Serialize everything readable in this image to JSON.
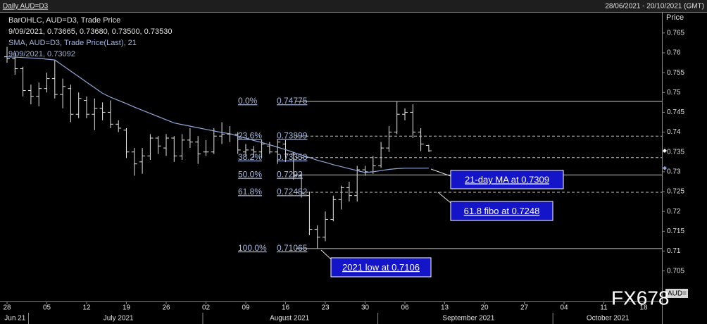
{
  "chart_data": {
    "type": "ohlc",
    "title": "Daily AUD=D3",
    "date_range": "28/06/2021 - 20/10/2021 (GMT)",
    "y_label": "Price",
    "instrument_tag": "AUD=",
    "watermark": "FX678",
    "categories": [
      "28",
      null,
      null,
      null,
      null,
      "05",
      null,
      null,
      null,
      null,
      "12",
      null,
      null,
      null,
      null,
      "19",
      null,
      null,
      null,
      null,
      "26",
      null,
      null,
      null,
      null,
      "02",
      null,
      null,
      null,
      null,
      "09",
      null,
      null,
      null,
      null,
      "16",
      null,
      null,
      null,
      null,
      "23",
      null,
      null,
      null,
      null,
      "30",
      null,
      null,
      null,
      null,
      "06",
      null,
      null,
      null,
      null,
      "13",
      null,
      null,
      null,
      null,
      "20",
      null,
      null,
      null,
      null,
      "27",
      null,
      null,
      null,
      null,
      "04",
      null,
      null,
      null,
      null,
      "11",
      null,
      null,
      null,
      null,
      "18",
      null,
      null
    ],
    "month_labels": [
      "Jun 21",
      "July 2021",
      "August 2021",
      "September 2021",
      "October 2021"
    ],
    "series": [
      {
        "name": "BarOHLC, AUD=D3, Trade Price",
        "legend_value": "9/09/2021, 0.73665, 0.73680, 0.73500, 0.73530",
        "color": "#e6e6e6",
        "open": [
          0.759,
          0.7585,
          0.756,
          0.7505,
          0.749,
          0.751,
          0.7535,
          0.7495,
          0.751,
          0.7445,
          0.748,
          0.7445,
          0.746,
          0.745,
          0.742,
          0.7405,
          0.735,
          0.7325,
          0.734,
          0.7385,
          0.736,
          0.7385,
          0.734,
          0.738,
          0.7375,
          0.735,
          0.735,
          0.739,
          0.7395,
          0.7395,
          0.735,
          0.7355,
          0.735,
          0.7365,
          0.735,
          0.737,
          0.7345,
          0.729,
          0.724,
          0.7155,
          0.7135,
          0.718,
          0.723,
          0.726,
          0.724,
          0.7305,
          0.73,
          0.7315,
          0.736,
          0.74,
          0.7445,
          0.745,
          0.74,
          0.73665,
          null,
          null,
          null,
          null,
          null,
          null,
          null,
          null,
          null,
          null,
          null,
          null,
          null,
          null,
          null,
          null,
          null,
          null,
          null,
          null,
          null,
          null,
          null,
          null,
          null,
          null,
          null,
          null,
          null
        ],
        "high": [
          0.7615,
          0.76,
          0.7565,
          0.752,
          0.7525,
          0.755,
          0.7582,
          0.7535,
          0.752,
          0.75,
          0.749,
          0.7485,
          0.7475,
          0.748,
          0.743,
          0.741,
          0.736,
          0.736,
          0.7395,
          0.739,
          0.7395,
          0.739,
          0.7395,
          0.741,
          0.739,
          0.738,
          0.741,
          0.7425,
          0.7415,
          0.74,
          0.737,
          0.7365,
          0.738,
          0.7375,
          0.738,
          0.738,
          0.735,
          0.73,
          0.725,
          0.7165,
          0.72,
          0.724,
          0.7265,
          0.7275,
          0.7315,
          0.7315,
          0.734,
          0.7375,
          0.7415,
          0.7478,
          0.746,
          0.747,
          0.741,
          0.7368,
          null,
          null,
          null,
          null,
          null,
          null,
          null,
          null,
          null,
          null,
          null,
          null,
          null,
          null,
          null,
          null,
          null,
          null,
          null,
          null,
          null,
          null,
          null,
          null,
          null,
          null,
          null,
          null,
          null
        ],
        "low": [
          0.7575,
          0.7545,
          0.749,
          0.747,
          0.7465,
          0.75,
          0.7485,
          0.746,
          0.7425,
          0.7435,
          0.7435,
          0.7405,
          0.743,
          0.741,
          0.74,
          0.7335,
          0.729,
          0.7295,
          0.733,
          0.7345,
          0.734,
          0.7325,
          0.733,
          0.736,
          0.732,
          0.734,
          0.7345,
          0.737,
          0.7375,
          0.7345,
          0.734,
          0.7335,
          0.7335,
          0.7345,
          0.732,
          0.7325,
          0.728,
          0.7235,
          0.714,
          0.7107,
          0.7125,
          0.7175,
          0.7205,
          0.7225,
          0.7225,
          0.729,
          0.7295,
          0.731,
          0.735,
          0.7395,
          0.743,
          0.7385,
          0.7352,
          0.735,
          null,
          null,
          null,
          null,
          null,
          null,
          null,
          null,
          null,
          null,
          null,
          null,
          null,
          null,
          null,
          null,
          null,
          null,
          null,
          null,
          null,
          null,
          null,
          null,
          null,
          null,
          null,
          null,
          null
        ],
        "close": [
          0.7585,
          0.756,
          0.7505,
          0.749,
          0.751,
          0.7535,
          0.7495,
          0.7515,
          0.7445,
          0.7485,
          0.7445,
          0.746,
          0.745,
          0.742,
          0.741,
          0.735,
          0.732,
          0.734,
          0.7385,
          0.7365,
          0.7385,
          0.734,
          0.738,
          0.7375,
          0.7345,
          0.735,
          0.739,
          0.7395,
          0.7395,
          0.7355,
          0.7355,
          0.735,
          0.737,
          0.735,
          0.7375,
          0.7345,
          0.729,
          0.7245,
          0.7155,
          0.7135,
          0.718,
          0.723,
          0.726,
          0.724,
          0.7305,
          0.73,
          0.7315,
          0.736,
          0.74,
          0.7445,
          0.745,
          0.74,
          0.737,
          0.7353,
          null,
          null,
          null,
          null,
          null,
          null,
          null,
          null,
          null,
          null,
          null,
          null,
          null,
          null,
          null,
          null,
          null,
          null,
          null,
          null,
          null,
          null,
          null,
          null,
          null,
          null,
          null,
          null,
          null
        ]
      },
      {
        "name": "SMA, AUD=D3, Trade Price(Last),  21",
        "legend_value": "9/09/2021, 0.73092",
        "type": "line",
        "color": "#8fa8d8",
        "values": [
          0.759,
          0.7589,
          0.7588,
          0.7587,
          0.7586,
          0.7584,
          0.7582,
          0.7568,
          0.7554,
          0.754,
          0.7526,
          0.7512,
          0.7498,
          0.7488,
          0.748,
          0.7472,
          0.7463,
          0.7455,
          0.7447,
          0.7439,
          0.7431,
          0.7423,
          0.7419,
          0.7415,
          0.7411,
          0.7407,
          0.7403,
          0.7399,
          0.7396,
          0.739,
          0.7385,
          0.7379,
          0.7374,
          0.7368,
          0.7362,
          0.7356,
          0.7349,
          0.7342,
          0.7336,
          0.7329,
          0.7324,
          0.7318,
          0.7313,
          0.7308,
          0.7303,
          0.7298,
          0.73,
          0.7303,
          0.7306,
          0.7308,
          0.7309,
          0.7309,
          0.7309,
          0.73092,
          null,
          null,
          null,
          null,
          null,
          null,
          null,
          null,
          null,
          null,
          null,
          null,
          null,
          null,
          null,
          null,
          null,
          null,
          null,
          null,
          null,
          null,
          null,
          null,
          null,
          null,
          null,
          null,
          null
        ]
      }
    ],
    "fib_levels": [
      {
        "label": "0.0%",
        "value": 0.74775,
        "dashed": false
      },
      {
        "label": "23.6%",
        "value": 0.73899,
        "dashed": true
      },
      {
        "label": "38.2%",
        "value": 0.73358,
        "dashed": true
      },
      {
        "label": "50.0%",
        "value": 0.7292,
        "dashed": false
      },
      {
        "label": "61.8%",
        "value": 0.72482,
        "dashed": true
      },
      {
        "label": "100.0%",
        "value": 0.71065,
        "dashed": false
      }
    ],
    "annotations": [
      "21-day MA at 0.7309",
      "61.8 fibo at 0.7248",
      "2021 low at 0.7106"
    ],
    "ylim": [
      0.6973,
      0.7703
    ],
    "yticks": [
      0.705,
      0.71,
      0.715,
      0.72,
      0.725,
      0.73,
      0.735,
      0.74,
      0.745,
      0.75,
      0.755,
      0.76,
      0.765
    ]
  }
}
